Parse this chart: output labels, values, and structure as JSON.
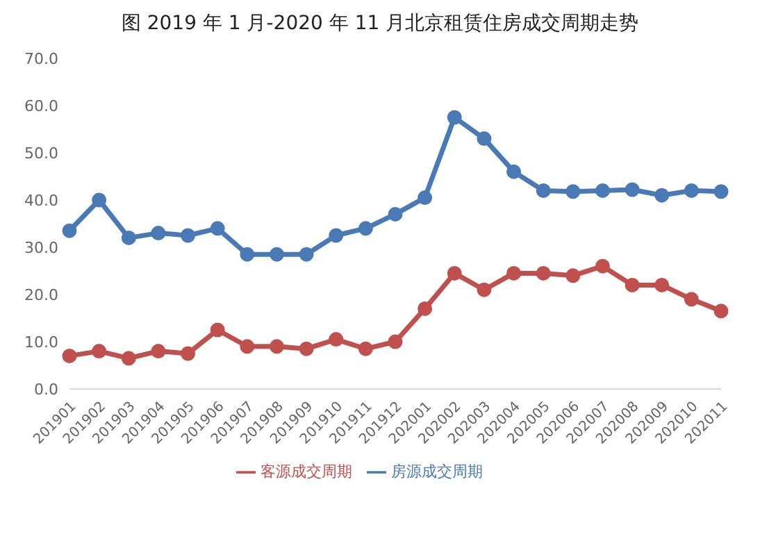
{
  "chart_data": {
    "type": "line",
    "title": "图  2019 年 1 月-2020 年 11 月北京租赁住房成交周期走势",
    "categories": [
      "201901",
      "201902",
      "201903",
      "201904",
      "201905",
      "201906",
      "201907",
      "201908",
      "201909",
      "201910",
      "201911",
      "201912",
      "202001",
      "202002",
      "202003",
      "202004",
      "202005",
      "202006",
      "202007",
      "202008",
      "202009",
      "202010",
      "202011"
    ],
    "series": [
      {
        "name": "房源成交周期",
        "color": "#4a7ab5",
        "values": [
          33.5,
          40,
          32,
          33,
          32.5,
          34,
          28.5,
          28.5,
          28.5,
          32.5,
          34,
          37,
          40.5,
          57.5,
          53,
          46,
          42,
          41.8,
          42,
          42.2,
          41,
          42,
          41.8
        ]
      },
      {
        "name": "客源成交周期",
        "color": "#c0504d",
        "values": [
          7,
          8,
          6.5,
          8,
          7.5,
          12.5,
          9,
          9,
          8.5,
          10.5,
          8.5,
          10,
          17,
          24.5,
          21,
          24.5,
          24.5,
          24,
          26,
          22,
          22,
          19,
          16.5
        ]
      }
    ],
    "ylim": [
      0,
      70
    ],
    "yticks": [
      {
        "value": 0,
        "label": "0.0"
      },
      {
        "value": 10,
        "label": "10.0"
      },
      {
        "value": 20,
        "label": "20.0"
      },
      {
        "value": 30,
        "label": "30.0"
      },
      {
        "value": 40,
        "label": "40.0"
      },
      {
        "value": 50,
        "label": "50.0"
      },
      {
        "value": 60,
        "label": "60.0"
      },
      {
        "value": 70,
        "label": "70.0"
      }
    ],
    "grid": false,
    "legend": "bottom",
    "marker": "circle",
    "line_style": "solid"
  }
}
